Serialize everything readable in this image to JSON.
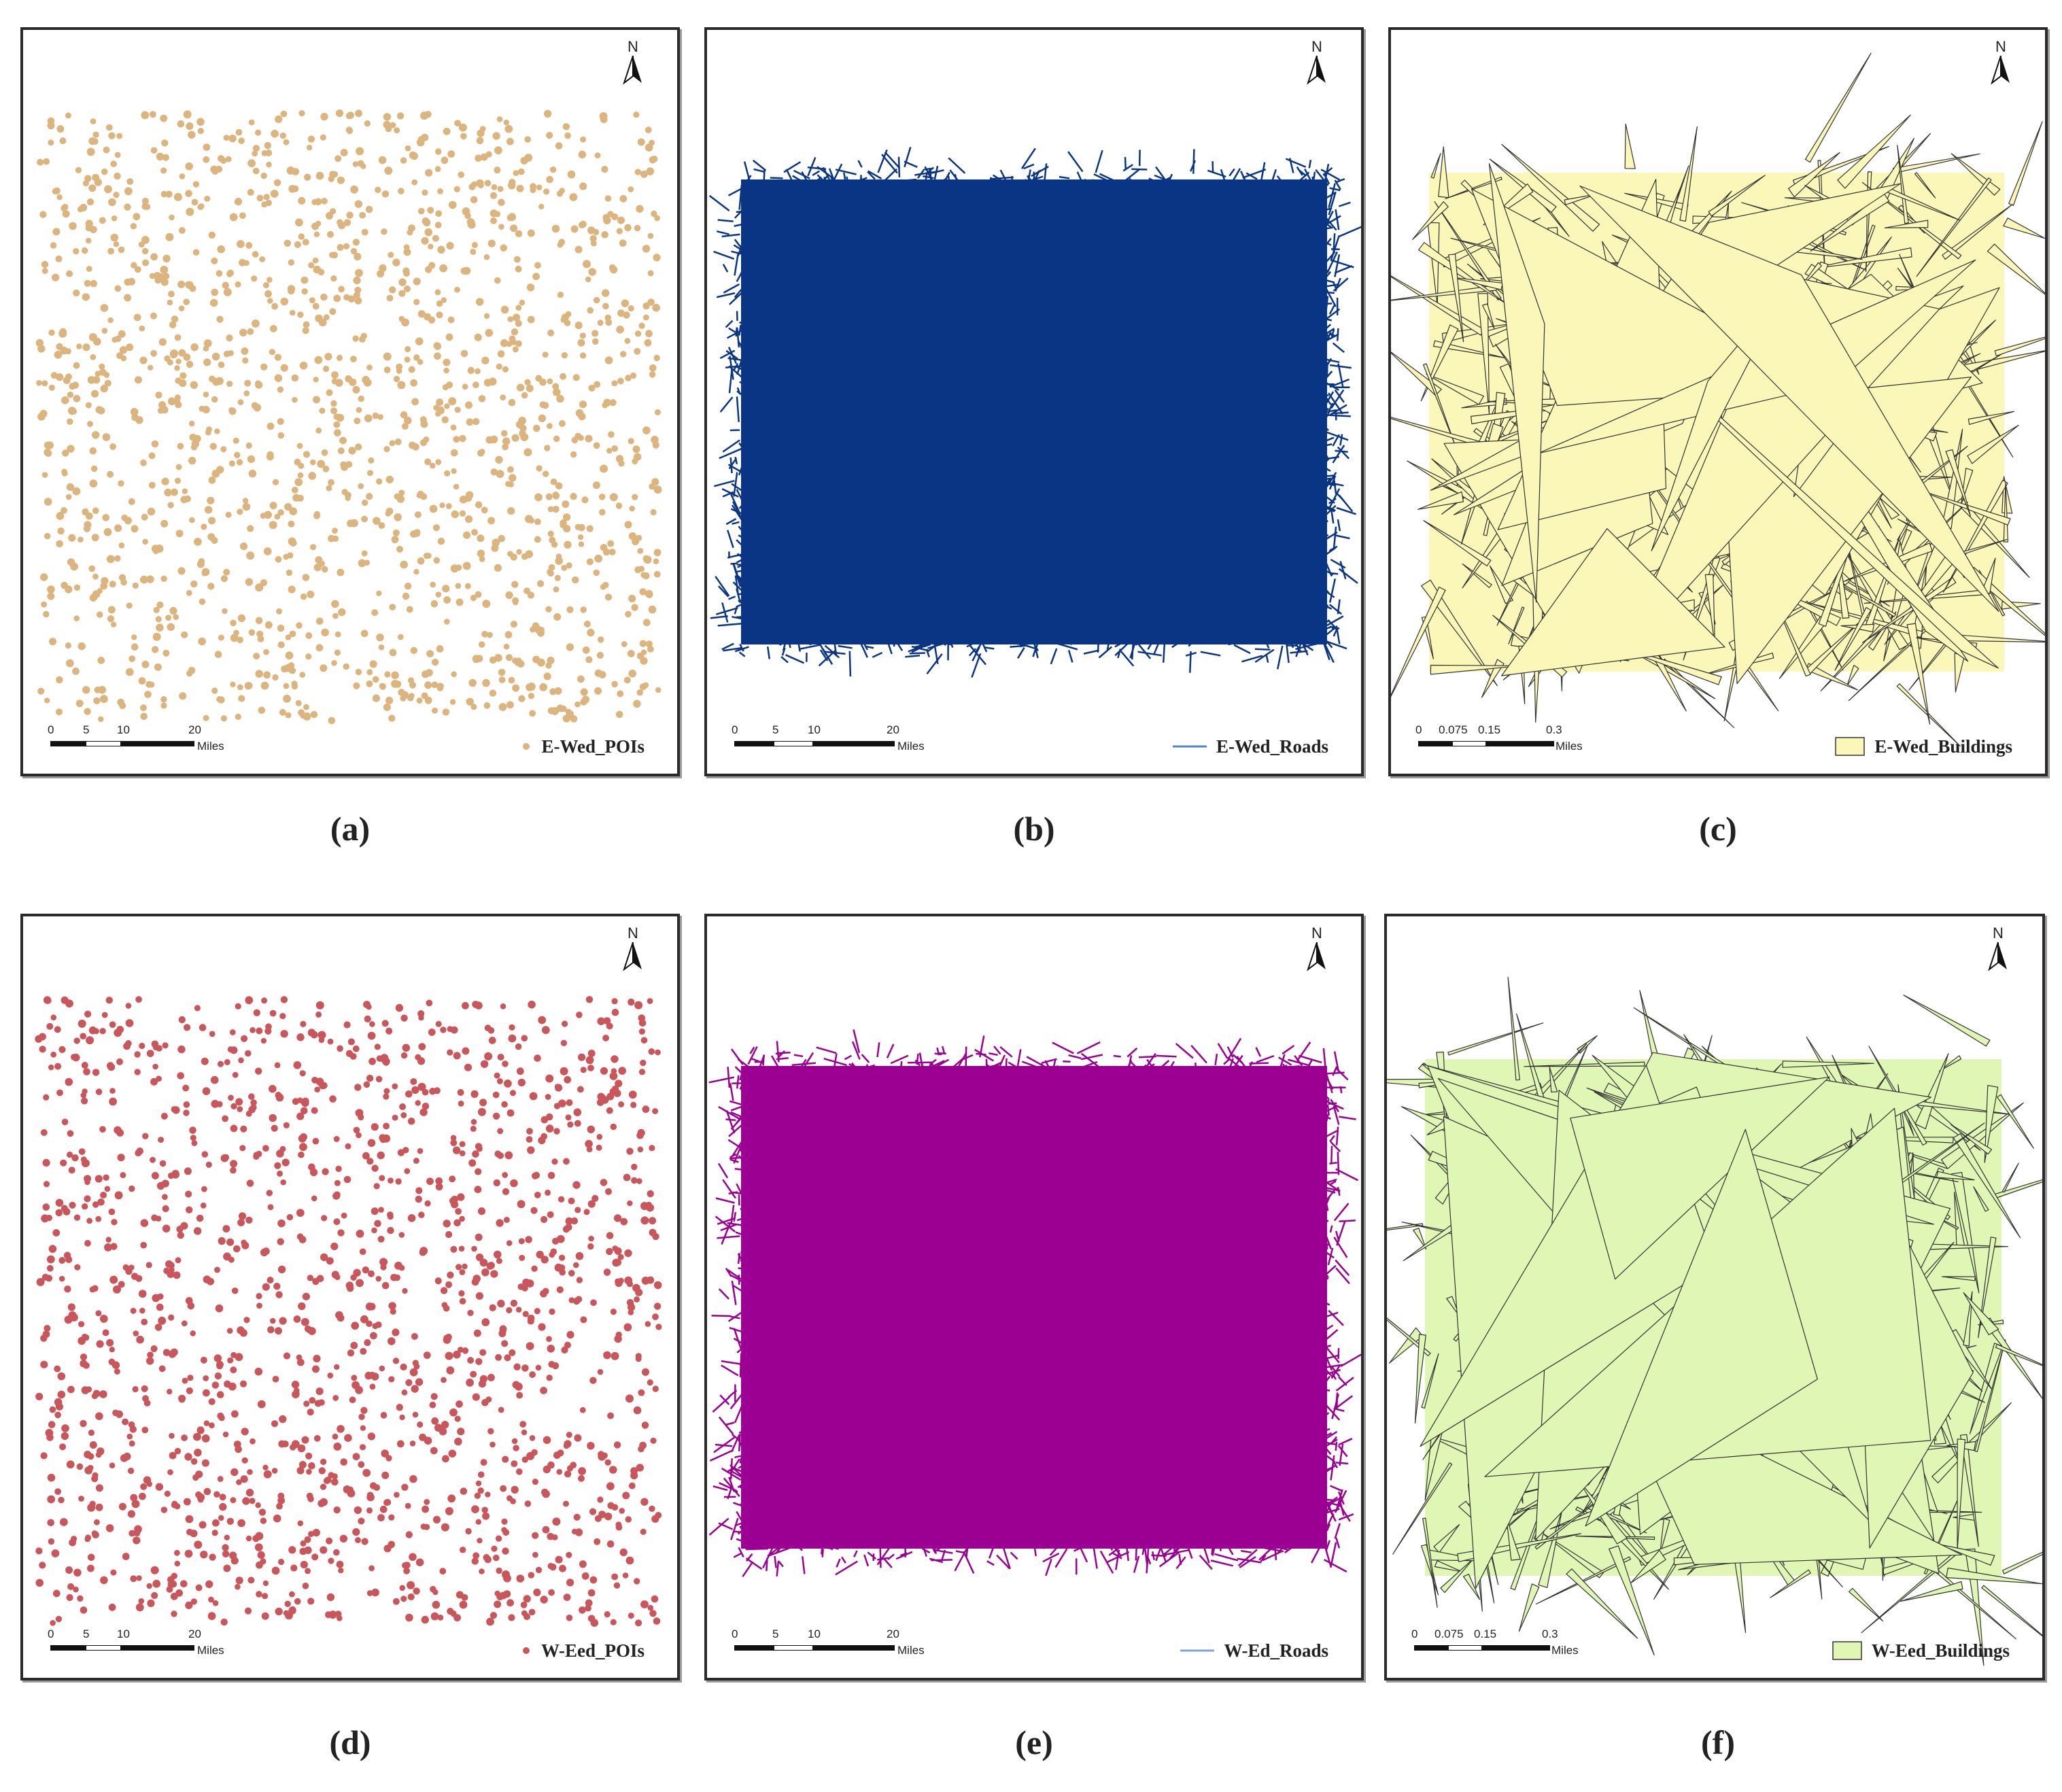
{
  "panels": [
    {
      "caption": "(a)",
      "layer_type": "points",
      "legend_label": "E-Wed_POIs",
      "color": "#dcb47e",
      "stroke": "#dcb47e",
      "north_label": "N",
      "scale_ticks": [
        "0",
        "5",
        "10",
        "20"
      ],
      "scale_unit": "Miles"
    },
    {
      "caption": "(b)",
      "layer_type": "lines",
      "legend_label": "E-Wed_Roads",
      "color": "#0a3585",
      "stroke": "#4f86c6",
      "north_label": "N",
      "scale_ticks": [
        "0",
        "5",
        "10",
        "20"
      ],
      "scale_unit": "Miles"
    },
    {
      "caption": "(c)",
      "layer_type": "polygons",
      "legend_label": "E-Wed_Buildings",
      "color": "#fbf7b8",
      "stroke": "#333333",
      "north_label": "N",
      "scale_ticks": [
        "0",
        "0.075",
        "0.15",
        "0.3"
      ],
      "scale_unit": "Miles"
    },
    {
      "caption": "(d)",
      "layer_type": "points",
      "legend_label": "W-Eed_POIs",
      "color": "#c9565a",
      "stroke": "#c9565a",
      "north_label": "N",
      "scale_ticks": [
        "0",
        "5",
        "10",
        "20"
      ],
      "scale_unit": "Miles"
    },
    {
      "caption": "(e)",
      "layer_type": "lines",
      "legend_label": "W-Ed_Roads",
      "color": "#9b0092",
      "stroke": "#7fa4d1",
      "north_label": "N",
      "scale_ticks": [
        "0",
        "5",
        "10",
        "20"
      ],
      "scale_unit": "Miles"
    },
    {
      "caption": "(f)",
      "layer_type": "polygons",
      "legend_label": "W-Eed_Buildings",
      "color": "#dff6b4",
      "stroke": "#333333",
      "north_label": "N",
      "scale_ticks": [
        "0",
        "0.075",
        "0.15",
        "0.3"
      ],
      "scale_unit": "Miles"
    }
  ]
}
